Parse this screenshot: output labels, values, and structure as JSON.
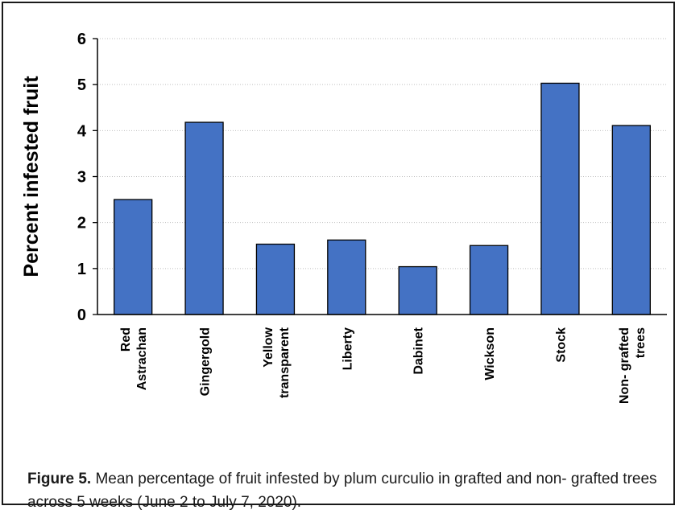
{
  "chart_data": {
    "type": "bar",
    "ylabel": "Percent infested fruit",
    "xlabel": "",
    "ylim": [
      0,
      6
    ],
    "yticks": [
      "0",
      "1",
      "2",
      "3",
      "4",
      "5",
      "6"
    ],
    "grid": true,
    "categories": [
      [
        "Red",
        "Astrachan"
      ],
      [
        "Gingergold"
      ],
      [
        "Yellow",
        "transparent"
      ],
      [
        "Liberty"
      ],
      [
        "Dabinet"
      ],
      [
        "Wickson"
      ],
      [
        "Stock"
      ],
      [
        "Non- grafted",
        "trees"
      ]
    ],
    "values": [
      2.5,
      4.18,
      1.53,
      1.62,
      1.04,
      1.5,
      5.03,
      4.11
    ],
    "bar_color": "#4472c4",
    "bar_stroke": "#000000"
  },
  "caption": {
    "label": "Figure 5.",
    "text": "  Mean percentage of fruit infested by plum curculio in grafted and non- grafted trees across 5 weeks (June 2 to July 7, 2020)."
  }
}
